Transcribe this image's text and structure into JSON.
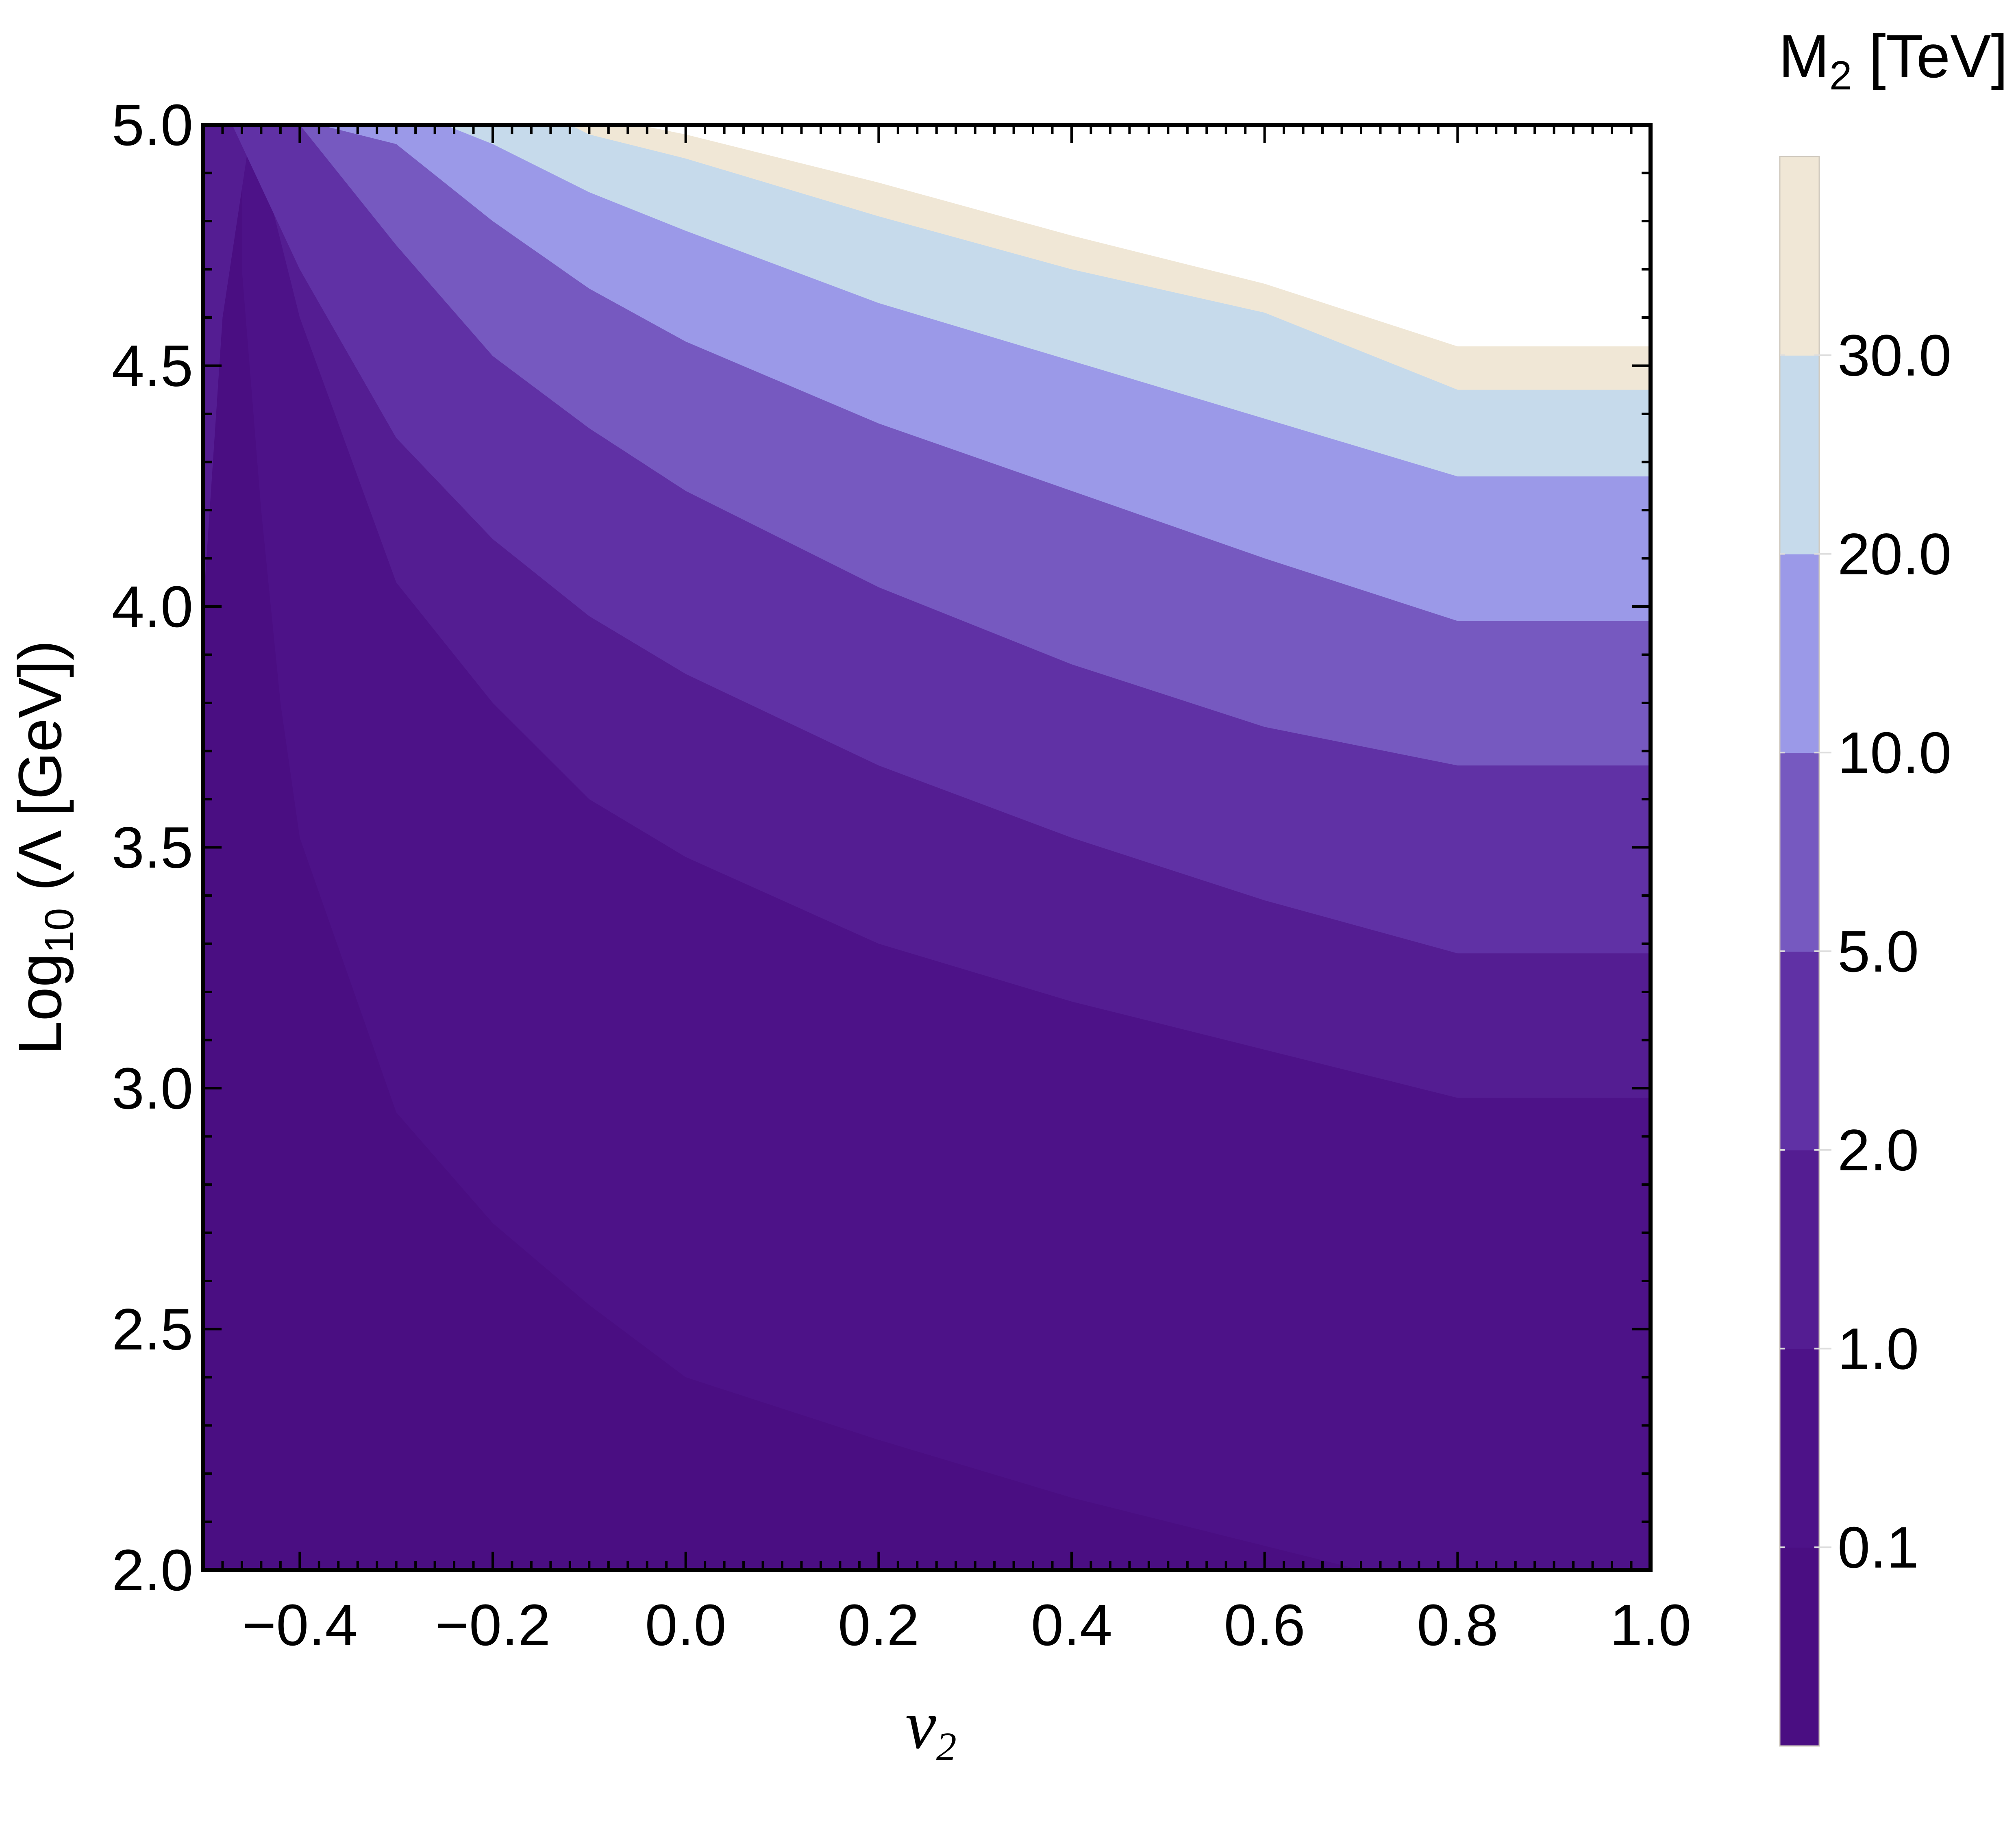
{
  "chart_data": {
    "type": "contour",
    "xlabel": "v2",
    "xlabel_main": "v",
    "xlabel_sub": "2",
    "ylabel": "Log10 (Λ [GeV])",
    "ylabel_main": "Log",
    "ylabel_sub": "10",
    "ylabel_rest": " (Λ [GeV])",
    "xlim": [
      -0.5,
      1.0
    ],
    "ylim": [
      2.0,
      5.0
    ],
    "x_ticks": [
      -0.4,
      -0.2,
      0.0,
      0.2,
      0.4,
      0.6,
      0.8,
      1.0
    ],
    "x_tick_labels": [
      "−0.4",
      "−0.2",
      "0.0",
      "0.2",
      "0.4",
      "0.6",
      "0.8",
      "1.0"
    ],
    "y_ticks": [
      2.0,
      2.5,
      3.0,
      3.5,
      4.0,
      4.5,
      5.0
    ],
    "y_tick_labels": [
      "2.0",
      "2.5",
      "3.0",
      "3.5",
      "4.0",
      "4.5",
      "5.0"
    ],
    "grid": false,
    "colorbar": {
      "title": "M2 [TeV]",
      "title_main": "M",
      "title_sub": "2",
      "title_rest": " [TeV]",
      "levels": [
        0.1,
        1.0,
        2.0,
        5.0,
        10.0,
        20.0,
        30.0
      ],
      "level_labels": [
        "0.1",
        "1.0",
        "2.0",
        "5.0",
        "10.0",
        "20.0",
        "30.0"
      ]
    },
    "band_colors": [
      "#4a0e82",
      "#4d1288",
      "#541d92",
      "#6031a5",
      "#7659c0",
      "#9b99e8",
      "#c6daeb",
      "#f0e7d6"
    ],
    "contours": [
      {
        "level": 0.1,
        "x": [
          -0.46,
          -0.44,
          -0.42,
          -0.4,
          -0.3,
          -0.2,
          -0.1,
          0.0,
          0.2,
          0.4,
          0.6,
          0.7
        ],
        "y": [
          4.7,
          4.2,
          3.8,
          3.52,
          2.95,
          2.72,
          2.55,
          2.4,
          2.27,
          2.15,
          2.05,
          2.0
        ]
      },
      {
        "level": 1.0,
        "x": [
          -0.5,
          -0.48,
          -0.45,
          -0.4,
          -0.3,
          -0.2,
          -0.1,
          0.0,
          0.2,
          0.4,
          0.6,
          0.8,
          1.0
        ],
        "y": [
          4.0,
          4.6,
          5.0,
          4.6,
          4.05,
          3.8,
          3.6,
          3.48,
          3.3,
          3.18,
          3.08,
          2.98,
          2.98
        ]
      },
      {
        "level": 2.0,
        "x": [
          -0.47,
          -0.4,
          -0.3,
          -0.2,
          -0.1,
          0.0,
          0.2,
          0.4,
          0.6,
          0.8,
          1.0
        ],
        "y": [
          5.0,
          4.7,
          4.35,
          4.14,
          3.98,
          3.86,
          3.67,
          3.52,
          3.39,
          3.28,
          3.28
        ]
      },
      {
        "level": 5.0,
        "x": [
          -0.4,
          -0.3,
          -0.2,
          -0.1,
          0.0,
          0.2,
          0.4,
          0.6,
          0.8,
          1.0
        ],
        "y": [
          5.0,
          4.75,
          4.52,
          4.37,
          4.24,
          4.04,
          3.88,
          3.75,
          3.67,
          3.67
        ]
      },
      {
        "level": 10.0,
        "x": [
          -0.38,
          -0.3,
          -0.2,
          -0.1,
          0.0,
          0.2,
          0.4,
          0.6,
          0.8,
          1.0
        ],
        "y": [
          5.0,
          4.96,
          4.8,
          4.66,
          4.55,
          4.38,
          4.24,
          4.1,
          3.97,
          3.97
        ]
      },
      {
        "level": 20.0,
        "x": [
          -0.25,
          -0.2,
          -0.1,
          0.0,
          0.2,
          0.4,
          0.6,
          0.8,
          1.0
        ],
        "y": [
          5.0,
          4.96,
          4.86,
          4.78,
          4.63,
          4.51,
          4.39,
          4.27,
          4.27
        ]
      },
      {
        "level": 30.0,
        "x": [
          -0.12,
          -0.1,
          0.0,
          0.2,
          0.4,
          0.6,
          0.8,
          1.0
        ],
        "y": [
          5.0,
          4.98,
          4.93,
          4.81,
          4.7,
          4.61,
          4.45,
          4.45
        ]
      },
      {
        "level": 40.0,
        "x": [
          -0.05,
          0.0,
          0.2,
          0.4,
          0.6,
          0.8,
          1.0
        ],
        "y": [
          5.0,
          4.98,
          4.88,
          4.77,
          4.67,
          4.54,
          4.54
        ]
      }
    ]
  }
}
